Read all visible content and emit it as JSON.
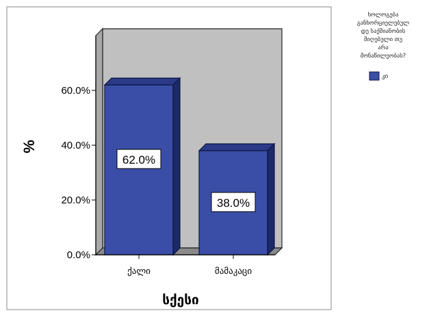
{
  "chart_data": {
    "type": "bar",
    "categories": [
      "ქალი",
      "მამაკაცი"
    ],
    "series": [
      {
        "name": "კი",
        "values": [
          62.0,
          38.0
        ]
      }
    ],
    "data_labels": [
      "62.0%",
      "38.0%"
    ],
    "xlabel": "სქესი",
    "ylabel": "%",
    "ylim": [
      0,
      80
    ],
    "yticks": [
      0,
      20,
      40,
      60
    ],
    "ytick_labels": [
      "0.0%",
      "20.0%",
      "40.0%",
      "60.0%"
    ],
    "legend": {
      "title_lines": [
        "ხოლოგება",
        "განხორციელებულ",
        "დე საქმიანობის",
        "მიღებული თუ",
        "არა",
        "მონაწილეობას?"
      ],
      "placement": "top-right"
    },
    "grid": false,
    "three_d": true,
    "colors": {
      "bar_front": "#3a4ea8",
      "bar_side": "#1c2a6a",
      "bar_top": "#2a3a88",
      "plot_wall": "#c0c0c0",
      "plot_side_wall": "#a8a8a8",
      "floor": "#8a8a8a"
    }
  }
}
